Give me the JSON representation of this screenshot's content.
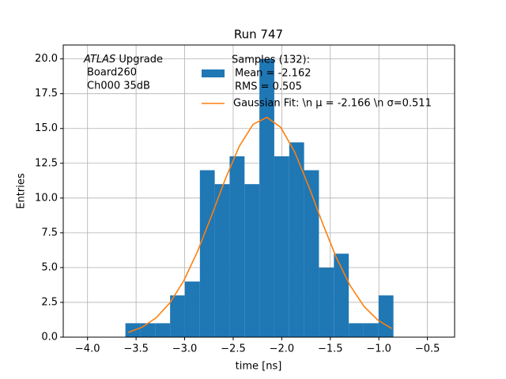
{
  "chart_data": {
    "type": "histogram",
    "title": "Run 747",
    "xlabel": "time [ns]",
    "ylabel": "Entries",
    "annotation": {
      "experiment": "ATLAS",
      "lines": [
        "Upgrade",
        "Board260",
        "Ch000 35dB"
      ]
    },
    "bins": [
      -3.61,
      -3.457,
      -3.303,
      -3.15,
      -2.997,
      -2.843,
      -2.69,
      -2.537,
      -2.383,
      -2.23,
      -2.077,
      -1.923,
      -1.77,
      -1.617,
      -1.463,
      -1.31,
      -1.157,
      -1.003,
      -0.85
    ],
    "series": [
      {
        "name": "Samples (132):",
        "stats": [
          "Mean = -2.162",
          "RMS = 0.505"
        ],
        "color": "#1f77b4",
        "values": [
          1,
          1,
          1,
          3,
          4,
          12,
          11,
          13,
          11,
          20,
          13,
          14,
          12,
          5,
          6,
          1,
          1,
          3
        ]
      },
      {
        "name": "Gaussian Fit: \\n μ = -2.166 \\n σ=0.511",
        "type": "line",
        "color": "#ff7f0e",
        "x": [
          -3.58,
          -3.437,
          -3.295,
          -3.152,
          -3.009,
          -2.867,
          -2.724,
          -2.581,
          -2.438,
          -2.295,
          -2.153,
          -2.01,
          -1.867,
          -1.724,
          -1.581,
          -1.439,
          -1.296,
          -1.153,
          -1.01,
          -0.867
        ],
        "values": [
          0.34,
          0.72,
          1.38,
          2.46,
          4.05,
          6.17,
          8.71,
          11.36,
          13.71,
          15.3,
          15.8,
          15.08,
          13.31,
          10.87,
          8.21,
          5.74,
          3.71,
          2.21,
          1.22,
          0.62
        ]
      }
    ],
    "xlim": [
      -4.25,
      -0.22
    ],
    "ylim": [
      0,
      21
    ],
    "xticks": [
      {
        "value": -4,
        "label": "−4.0"
      },
      {
        "value": -3.5,
        "label": "−3.5"
      },
      {
        "value": -3,
        "label": "−3.0"
      },
      {
        "value": -2.5,
        "label": "−2.5"
      },
      {
        "value": -2,
        "label": "−2.0"
      },
      {
        "value": -1.5,
        "label": "−1.5"
      },
      {
        "value": -1,
        "label": "−1.0"
      },
      {
        "value": -0.5,
        "label": "−0.5"
      }
    ],
    "yticks": [
      {
        "value": 0,
        "label": "0.0"
      },
      2.5,
      {
        "value": 5,
        "label": "5.0"
      },
      7.5,
      {
        "value": 10,
        "label": "10.0"
      },
      12.5,
      {
        "value": 15,
        "label": "15.0"
      },
      17.5,
      {
        "value": 20,
        "label": "20.0"
      }
    ],
    "grid": true
  }
}
